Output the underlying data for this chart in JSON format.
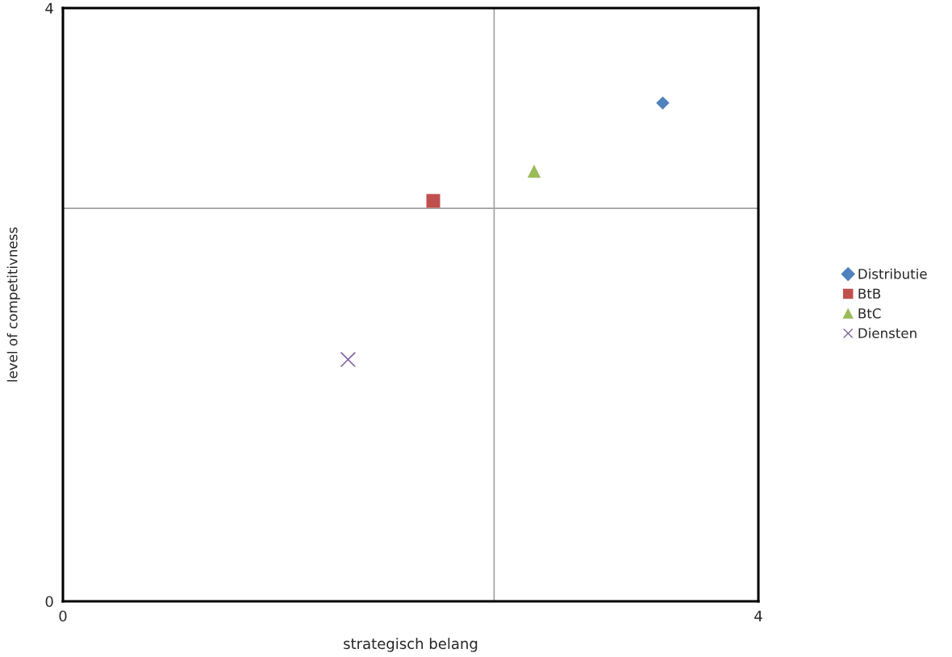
{
  "chart_data": {
    "type": "scatter",
    "xlabel": "strategisch belang",
    "ylabel": "level of competitivness",
    "xlim": [
      0,
      4
    ],
    "ylim": [
      0,
      4
    ],
    "xticks": [
      0,
      4
    ],
    "yticks": [
      0,
      4
    ],
    "series": [
      {
        "name": "Distributie",
        "color": "#4f81bd",
        "marker": "diamond",
        "x": [
          3.45
        ],
        "values": [
          3.36
        ]
      },
      {
        "name": "BtB",
        "color": "#c0504d",
        "marker": "square",
        "x": [
          2.13
        ],
        "values": [
          2.7
        ]
      },
      {
        "name": "BtC",
        "color": "#9bbb59",
        "marker": "triangle",
        "x": [
          2.71
        ],
        "values": [
          2.9
        ]
      },
      {
        "name": "Diensten",
        "color": "#8064a2",
        "marker": "cross",
        "x": [
          1.64
        ],
        "values": [
          1.63
        ]
      }
    ],
    "ref_lines": [
      {
        "axis": "x",
        "value": 2.48,
        "color": "#a0a0a0"
      },
      {
        "axis": "y",
        "value": 2.65,
        "color": "#a0a0a0"
      }
    ],
    "legend": "right"
  }
}
